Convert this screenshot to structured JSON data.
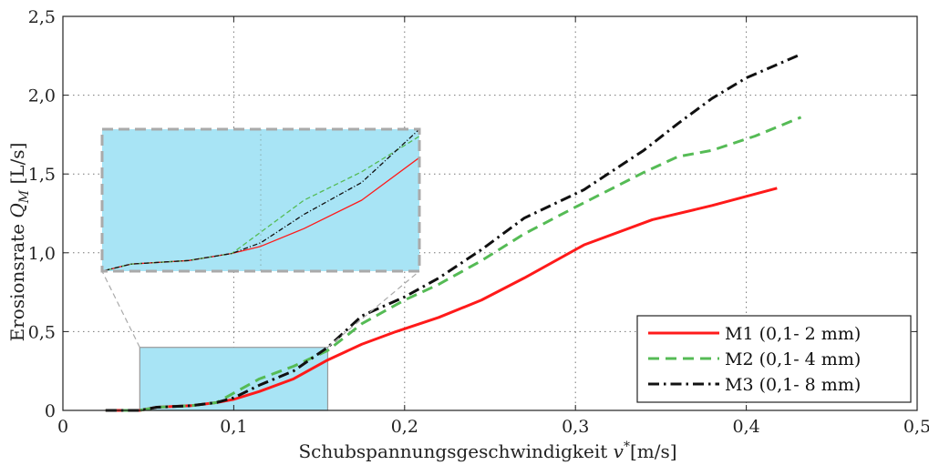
{
  "chart_data": {
    "type": "line",
    "title": "",
    "xlabel": "Schubspannungsgeschwindigkeit v*[m/s]",
    "ylabel": "Erosionsrate Q_M [L/s]",
    "ylabel_main": "Erosionsrate",
    "ylabel_symbol": "Q",
    "ylabel_subscript": "M",
    "ylabel_unit": "[L/s]",
    "xlabel_main": "Schubspannungsgeschwindigkeit",
    "xlabel_symbol": "v",
    "xlabel_star": "*",
    "xlabel_unit": "[m/s]",
    "xlim": [
      0,
      0.5
    ],
    "ylim": [
      0,
      2.5
    ],
    "x_ticks": [
      0,
      0.1,
      0.2,
      0.3,
      0.4,
      0.5
    ],
    "x_tick_labels": [
      "0",
      "0,1",
      "0,2",
      "0,3",
      "0,4",
      "0,5"
    ],
    "y_ticks": [
      0,
      0.5,
      1.0,
      1.5,
      2.0,
      2.5
    ],
    "y_tick_labels": [
      "0",
      "0,5",
      "1,0",
      "1,5",
      "2,0",
      "2,5"
    ],
    "grid": true,
    "legend_position": "bottom-right",
    "series": [
      {
        "name": "M1 (0,1- 2 mm)",
        "color": "#ff1a1a",
        "dash": "solid",
        "x": [
          0.025,
          0.045,
          0.055,
          0.075,
          0.09,
          0.1,
          0.115,
          0.135,
          0.155,
          0.175,
          0.195,
          0.22,
          0.245,
          0.27,
          0.305,
          0.345,
          0.38,
          0.418
        ],
        "y": [
          0.0,
          0.0,
          0.02,
          0.03,
          0.05,
          0.07,
          0.12,
          0.2,
          0.32,
          0.42,
          0.5,
          0.59,
          0.7,
          0.84,
          1.05,
          1.21,
          1.3,
          1.41
        ]
      },
      {
        "name": "M2 (0,1- 4 mm)",
        "color": "#55bb55",
        "dash": "dashed",
        "x": [
          0.025,
          0.045,
          0.055,
          0.075,
          0.09,
          0.1,
          0.115,
          0.135,
          0.155,
          0.175,
          0.2,
          0.22,
          0.245,
          0.27,
          0.3,
          0.34,
          0.36,
          0.38,
          0.405,
          0.432
        ],
        "y": [
          0.0,
          0.0,
          0.02,
          0.03,
          0.05,
          0.11,
          0.2,
          0.28,
          0.38,
          0.55,
          0.7,
          0.8,
          0.95,
          1.12,
          1.29,
          1.51,
          1.61,
          1.65,
          1.74,
          1.86
        ]
      },
      {
        "name": "M3 (0,1- 8 mm)",
        "color": "#111111",
        "dash": "dashdot",
        "x": [
          0.025,
          0.045,
          0.055,
          0.075,
          0.09,
          0.1,
          0.115,
          0.135,
          0.155,
          0.175,
          0.2,
          0.22,
          0.245,
          0.27,
          0.305,
          0.34,
          0.36,
          0.38,
          0.4,
          0.43
        ],
        "y": [
          0.0,
          0.0,
          0.02,
          0.03,
          0.05,
          0.08,
          0.16,
          0.25,
          0.4,
          0.6,
          0.72,
          0.84,
          1.02,
          1.22,
          1.4,
          1.65,
          1.82,
          1.98,
          2.11,
          2.25
        ]
      }
    ],
    "inset": {
      "description_zoom_x": [
        0.045,
        0.155
      ],
      "description_zoom_y": [
        0.0,
        0.4
      ]
    }
  }
}
